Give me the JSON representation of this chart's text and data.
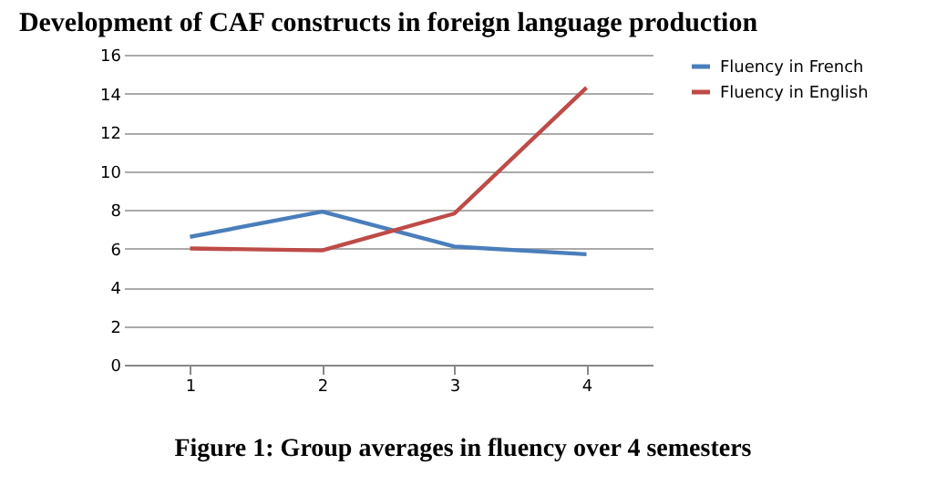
{
  "chart_data": {
    "type": "line",
    "title": "Development of CAF constructs in foreign language production",
    "categories": [
      "1",
      "2",
      "3",
      "4"
    ],
    "series": [
      {
        "name": "Fluency in French",
        "color": "#4a7ebb",
        "values": [
          6.6,
          7.9,
          6.1,
          5.7
        ]
      },
      {
        "name": "Fluency in English",
        "color": "#be4b48",
        "values": [
          6.0,
          5.9,
          7.8,
          14.3
        ]
      }
    ],
    "ylim": [
      0,
      16
    ],
    "yticks": [
      0,
      2,
      4,
      6,
      8,
      10,
      12,
      14,
      16
    ],
    "grid": "y",
    "legend": "right",
    "marker": "none",
    "annotations": [
      "Figure 1: Group averages in fluency over 4 semesters"
    ]
  }
}
